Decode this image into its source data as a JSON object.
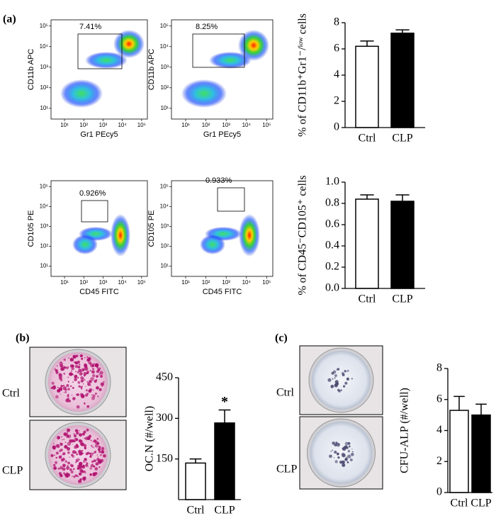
{
  "panel_labels": [
    "(a)",
    "(b)",
    "(c)"
  ],
  "photo_labels": {
    "b": [
      "Ctrl",
      "CLP"
    ],
    "c": [
      "Ctrl",
      "CLP"
    ]
  },
  "flow_plots": [
    {
      "xlabel": "Gr1 PEcy5",
      "ylabel": "CD11b APC",
      "gate_label": "7.41%",
      "log": true,
      "xlim": [
        2,
        200000
      ],
      "ylim": [
        3,
        200000
      ],
      "xticks": [
        {
          "value": 10,
          "label": "10¹"
        },
        {
          "value": 100,
          "label": "10²"
        },
        {
          "value": 1000,
          "label": "10³"
        },
        {
          "value": 10000,
          "label": "10⁴"
        },
        {
          "value": 100000,
          "label": "10⁵"
        }
      ],
      "yticks": [
        {
          "value": 10,
          "label": "10¹"
        },
        {
          "value": 100,
          "label": "10²"
        },
        {
          "value": 1000,
          "label": "10³"
        },
        {
          "value": 10000,
          "label": "10⁴"
        },
        {
          "value": 100000,
          "label": "10⁵"
        }
      ]
    },
    {
      "xlabel": "Gr1 PEcy5",
      "ylabel": "CD11b APC",
      "gate_label": "8.25%",
      "log": true,
      "xlim": [
        2,
        200000
      ],
      "ylim": [
        3,
        200000
      ],
      "xticks": [
        {
          "value": 10,
          "label": "10¹"
        },
        {
          "value": 100,
          "label": "10²"
        },
        {
          "value": 1000,
          "label": "10³"
        },
        {
          "value": 10000,
          "label": "10⁴"
        },
        {
          "value": 100000,
          "label": "10⁵"
        }
      ],
      "yticks": [
        {
          "value": 10,
          "label": "10¹"
        },
        {
          "value": 100,
          "label": "10²"
        },
        {
          "value": 1000,
          "label": "10³"
        },
        {
          "value": 10000,
          "label": "10⁴"
        },
        {
          "value": 100000,
          "label": "10⁵"
        }
      ]
    },
    {
      "xlabel": "CD45 FITC",
      "ylabel": "CD105 PE",
      "gate_label": "0.926%",
      "log": true,
      "xlim": [
        2,
        200000
      ],
      "ylim": [
        3,
        200000
      ],
      "xticks": [
        {
          "value": 10,
          "label": "10¹"
        },
        {
          "value": 100,
          "label": "10²"
        },
        {
          "value": 1000,
          "label": "10³"
        },
        {
          "value": 10000,
          "label": "10⁴"
        },
        {
          "value": 100000,
          "label": "10⁵"
        }
      ],
      "yticks": [
        {
          "value": 10,
          "label": "10¹"
        },
        {
          "value": 100,
          "label": "10²"
        },
        {
          "value": 1000,
          "label": "10³"
        },
        {
          "value": 10000,
          "label": "10⁴"
        },
        {
          "value": 100000,
          "label": "10⁵"
        }
      ]
    },
    {
      "xlabel": "CD45 FITC",
      "ylabel": "CD105 PE",
      "gate_label": "0.933%",
      "log": true,
      "xlim": [
        2,
        200000
      ],
      "ylim": [
        3,
        200000
      ],
      "xticks": [
        {
          "value": 10,
          "label": "10¹"
        },
        {
          "value": 100,
          "label": "10²"
        },
        {
          "value": 1000,
          "label": "10³"
        },
        {
          "value": 10000,
          "label": "10⁴"
        },
        {
          "value": 100000,
          "label": "10⁵"
        }
      ],
      "yticks": [
        {
          "value": 10,
          "label": "10¹"
        },
        {
          "value": 100,
          "label": "10²"
        },
        {
          "value": 1000,
          "label": "10³"
        },
        {
          "value": 10000,
          "label": "10⁴"
        },
        {
          "value": 100000,
          "label": "10⁵"
        }
      ]
    }
  ],
  "chart_data": [
    {
      "type": "bar",
      "ylabel": "% of CD11b⁺Gr1⁻/ˡᵒʷ cells",
      "categories": [
        "Ctrl",
        "CLP"
      ],
      "values": [
        6.2,
        7.2
      ],
      "errors": [
        0.4,
        0.25
      ],
      "colors": [
        "#ffffff",
        "#000000"
      ],
      "ylim": [
        0,
        8
      ],
      "yticks": [
        0,
        2,
        4,
        6,
        8
      ]
    },
    {
      "type": "bar",
      "ylabel": "% of CD45⁻CD105⁺ cells",
      "categories": [
        "Ctrl",
        "CLP"
      ],
      "values": [
        0.84,
        0.82
      ],
      "errors": [
        0.04,
        0.06
      ],
      "colors": [
        "#ffffff",
        "#000000"
      ],
      "ylim": [
        0,
        1.0
      ],
      "yticks": [
        {
          "value": 0,
          "label": "0.0"
        },
        0.2,
        0.4,
        0.6,
        0.8,
        {
          "value": 1.0,
          "label": "1.0"
        }
      ]
    },
    {
      "type": "bar",
      "ylabel": "OC.N (#/well)",
      "categories": [
        "Ctrl",
        "CLP"
      ],
      "values": [
        135,
        283
      ],
      "errors": [
        15,
        48
      ],
      "colors": [
        "#ffffff",
        "#000000"
      ],
      "ylim": [
        0,
        450
      ],
      "yticks": [
        150,
        300,
        450
      ],
      "annotation": "*"
    },
    {
      "type": "bar",
      "ylabel": "CFU-ALP (#/well)",
      "categories": [
        "Ctrl",
        "CLP"
      ],
      "values": [
        5.3,
        5.0
      ],
      "errors": [
        0.9,
        0.7
      ],
      "colors": [
        "#ffffff",
        "#000000"
      ],
      "ylim": [
        0,
        8
      ],
      "yticks": [
        0,
        2,
        4,
        6,
        8
      ]
    }
  ]
}
